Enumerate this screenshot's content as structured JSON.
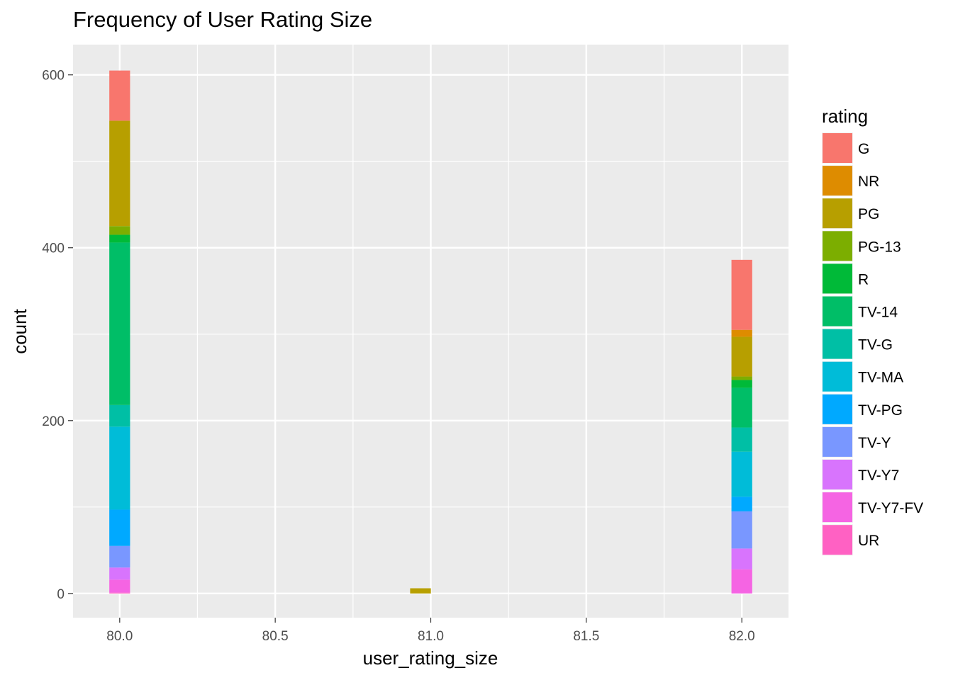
{
  "chart_data": {
    "type": "bar",
    "stacked": true,
    "title": "Frequency of User Rating Size",
    "xlabel": "user_rating_size",
    "ylabel": "count",
    "xlim": [
      79.85,
      82.15
    ],
    "ylim": [
      -28,
      635
    ],
    "x_ticks": [
      "80.0",
      "80.5",
      "81.0",
      "81.5",
      "82.0"
    ],
    "x_tick_values": [
      80.0,
      80.5,
      81.0,
      81.5,
      82.0
    ],
    "y_ticks": [
      "0",
      "200",
      "400",
      "600"
    ],
    "y_tick_values": [
      0,
      200,
      400,
      600
    ],
    "bin_width": 0.0667,
    "x": [
      80.0,
      80.967,
      82.0
    ],
    "grid": true,
    "legend_position": "right",
    "legend_title": "rating",
    "series": [
      {
        "name": "G",
        "color": "#F8766D",
        "values": [
          58,
          0,
          81
        ]
      },
      {
        "name": "NR",
        "color": "#DE8C00",
        "values": [
          0,
          0,
          8
        ]
      },
      {
        "name": "PG",
        "color": "#B79F00",
        "values": [
          122,
          6,
          46
        ]
      },
      {
        "name": "PG-13",
        "color": "#7CAE00",
        "values": [
          10,
          0,
          4
        ]
      },
      {
        "name": "R",
        "color": "#00BA38",
        "values": [
          9,
          0,
          9
        ]
      },
      {
        "name": "TV-14",
        "color": "#00BE67",
        "values": [
          188,
          0,
          46
        ]
      },
      {
        "name": "TV-G",
        "color": "#00BFA5",
        "values": [
          25,
          0,
          28
        ]
      },
      {
        "name": "TV-MA",
        "color": "#00BCD8",
        "values": [
          96,
          0,
          52
        ]
      },
      {
        "name": "TV-PG",
        "color": "#00A9FF",
        "values": [
          42,
          0,
          17
        ]
      },
      {
        "name": "TV-Y",
        "color": "#7997FF",
        "values": [
          25,
          0,
          43
        ]
      },
      {
        "name": "TV-Y7",
        "color": "#D874FD",
        "values": [
          14,
          0,
          24
        ]
      },
      {
        "name": "TV-Y7-FV",
        "color": "#F564E3",
        "values": [
          15,
          0,
          28
        ]
      },
      {
        "name": "UR",
        "color": "#FF61C3",
        "values": [
          1,
          0,
          0
        ]
      }
    ]
  }
}
